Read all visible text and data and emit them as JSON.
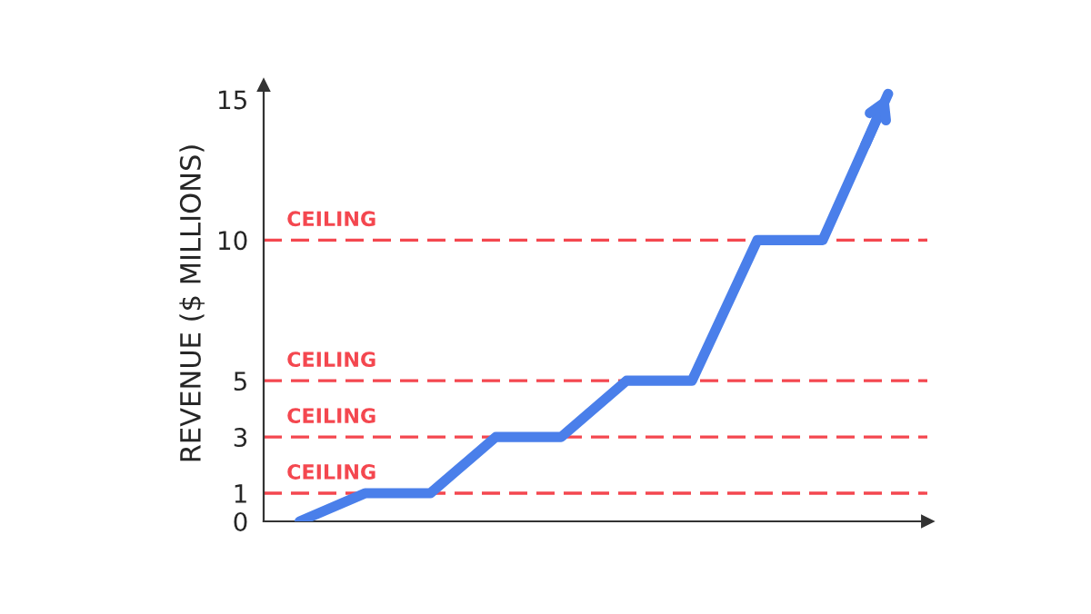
{
  "chart_data": {
    "type": "line",
    "ylabel": "REVENUE ($ MILLIONS)",
    "categories": [
      null,
      null,
      null,
      null,
      null,
      null,
      null,
      null,
      null,
      null
    ],
    "series": [
      {
        "color": "#4a7fea",
        "values": [
          0,
          1,
          1,
          3,
          3,
          5,
          5,
          10,
          10,
          15.2
        ]
      }
    ],
    "ylim": [
      0,
      15.5
    ],
    "yticks": [
      0,
      1,
      3,
      5,
      10,
      15
    ],
    "ref_lines": [
      {
        "axis": "y",
        "value": 1,
        "label": "CEILING",
        "color": "#f4474f",
        "line_style": "dashed"
      },
      {
        "axis": "y",
        "value": 3,
        "label": "CEILING",
        "color": "#f4474f",
        "line_style": "dashed"
      },
      {
        "axis": "y",
        "value": 5,
        "label": "CEILING",
        "color": "#f4474f",
        "line_style": "dashed"
      },
      {
        "axis": "y",
        "value": 10,
        "label": "CEILING",
        "color": "#f4474f",
        "line_style": "dashed"
      }
    ],
    "tick_labels": "y",
    "grid": false,
    "legend": false,
    "marker": "none",
    "line_style": "solid"
  }
}
